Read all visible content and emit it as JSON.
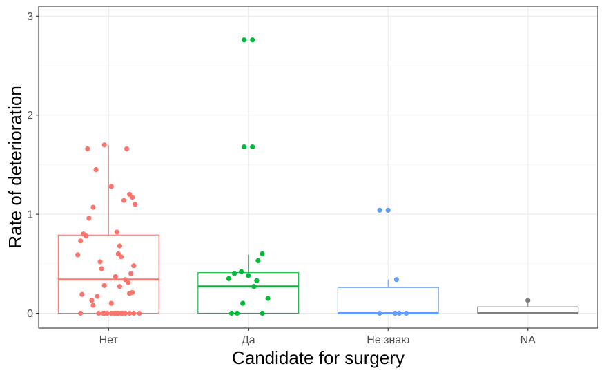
{
  "chart_data": {
    "type": "box",
    "xlabel": "Candidate for surgery",
    "ylabel": "Rate of deterioration",
    "ylim": [
      -0.15,
      3.1
    ],
    "yticks": [
      0,
      1,
      2,
      3
    ],
    "grid": true,
    "categories": [
      "Нет",
      "Да",
      "Не знаю",
      "NA"
    ],
    "colors": [
      "#F8766D",
      "#00BA38",
      "#619CFF",
      "#7F7F7F"
    ],
    "boxes": [
      {
        "category": "Нет",
        "q1": 0.0,
        "median": 0.34,
        "q3": 0.79,
        "whisker_low": 0.0,
        "whisker_high": 1.7
      },
      {
        "category": "Да",
        "q1": 0.0,
        "median": 0.27,
        "q3": 0.41,
        "whisker_low": 0.0,
        "whisker_high": 0.59
      },
      {
        "category": "Не знаю",
        "q1": 0.0,
        "median": 0.0,
        "q3": 0.26,
        "whisker_low": 0.0,
        "whisker_high": 0.34
      },
      {
        "category": "NA",
        "q1": 0.0,
        "median": 0.0,
        "q3": 0.065,
        "whisker_low": 0.0,
        "whisker_high": 0.13
      }
    ],
    "points": [
      {
        "category": "Нет",
        "jitter": [
          -0.03,
          0.13,
          -0.15,
          -0.09,
          0.02,
          0.15,
          0.17,
          0.11,
          0.19,
          -0.11,
          -0.14,
          0.06,
          -0.18,
          -0.16,
          -0.2,
          0.08,
          0.07,
          -0.22,
          0.09,
          -0.06,
          0.18,
          -0.05,
          0.16,
          0.05,
          0.12,
          0.14,
          -0.03,
          0.08,
          0.17,
          0.15,
          -0.19,
          -0.08,
          -0.12,
          0.02,
          -0.11,
          0.05,
          -0.04,
          -0.07,
          -0.01,
          0.1,
          -0.01,
          0.02,
          0.07,
          0.12,
          0.18,
          0.22,
          -0.2,
          -0.03,
          0.06,
          0.09,
          0.04,
          0.15
        ],
        "values": [
          1.7,
          1.66,
          1.66,
          1.45,
          1.28,
          1.2,
          1.17,
          1.14,
          1.1,
          1.07,
          0.96,
          0.82,
          0.8,
          0.78,
          0.73,
          0.68,
          0.6,
          0.59,
          0.57,
          0.52,
          0.48,
          0.45,
          0.4,
          0.37,
          0.34,
          0.31,
          0.28,
          0.27,
          0.21,
          0.2,
          0.19,
          0.17,
          0.13,
          0.1,
          0.08,
          0.0,
          0.0,
          0.0,
          0.0,
          0.0,
          0.0,
          0.0,
          0.0,
          0.0,
          0.0,
          0.0,
          0.0,
          0.0,
          0.0,
          0.0,
          0.0,
          0.0
        ]
      },
      {
        "category": "Да",
        "jitter": [
          -0.03,
          0.03,
          -0.03,
          0.03,
          0.1,
          0.07,
          -0.1,
          -0.05,
          0.0,
          -0.14,
          0.06,
          0.04,
          -0.04,
          0.14,
          -0.12,
          0.1,
          -0.08
        ],
        "values": [
          2.76,
          2.76,
          1.68,
          1.68,
          0.6,
          0.53,
          0.4,
          0.42,
          0.38,
          0.35,
          0.33,
          0.27,
          0.1,
          0.15,
          0.0,
          0.0,
          0.0
        ]
      },
      {
        "category": "Не знаю",
        "jitter": [
          -0.06,
          0.0,
          0.06,
          0.13,
          -0.06,
          0.05,
          0.08
        ],
        "values": [
          1.04,
          1.04,
          0.34,
          0.0,
          0.0,
          0.0,
          0.0
        ]
      },
      {
        "category": "NA",
        "jitter": [
          0.0
        ],
        "values": [
          0.13
        ]
      }
    ]
  }
}
